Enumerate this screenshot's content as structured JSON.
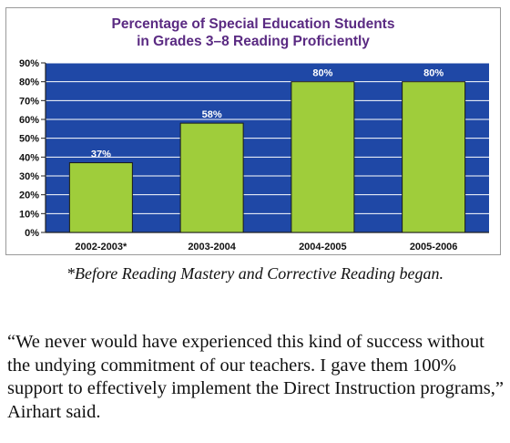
{
  "chart_data": {
    "type": "bar",
    "title_line1": "Percentage of Special Education Students",
    "title_line2": "in Grades 3–8 Reading Proficiently",
    "categories": [
      "2002-2003*",
      "2003-2004",
      "2004-2005",
      "2005-2006"
    ],
    "values": [
      37,
      58,
      80,
      80
    ],
    "data_labels": [
      "37%",
      "58%",
      "80%",
      "80%"
    ],
    "y_ticks": [
      "0%",
      "10%",
      "20%",
      "30%",
      "40%",
      "50%",
      "60%",
      "70%",
      "80%",
      "90%"
    ],
    "ylim": [
      0,
      90
    ],
    "grid": true,
    "colors": {
      "plot_background": "#1f48a6",
      "bar_fill": "#9fcd3b",
      "bar_stroke": "#1a1a1a",
      "gridline": "#ffffff",
      "title": "#5a2a82"
    }
  },
  "caption": "*Before Reading Mastery and Corrective Reading began.",
  "quote": "“We never would have experienced this kind of success without the undying commitment of our teachers. I gave them 100% support to effectively implement the Direct Instruction programs,” Airhart said."
}
